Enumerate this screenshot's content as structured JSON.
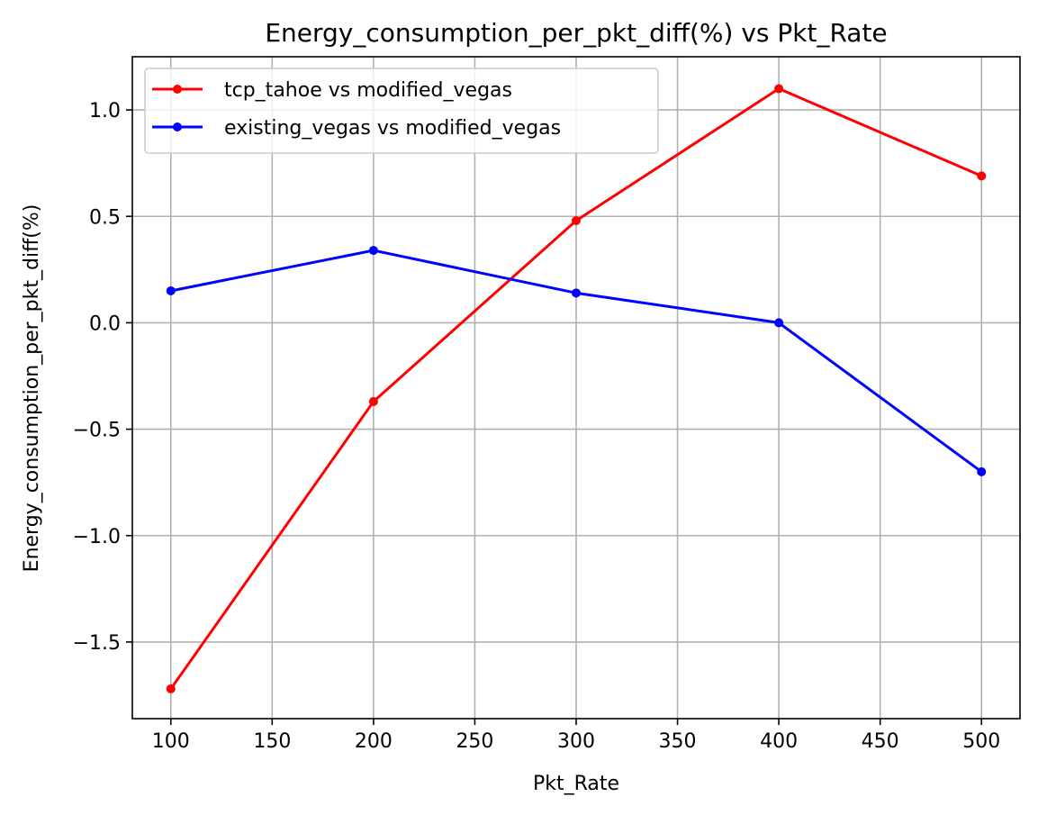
{
  "chart_data": {
    "type": "line",
    "title": "Energy_consumption_per_pkt_diff(%) vs Pkt_Rate",
    "xlabel": "Pkt_Rate",
    "ylabel": "Energy_consumption_per_pkt_diff(%)",
    "x": [
      100,
      200,
      300,
      400,
      500
    ],
    "xlim": [
      81,
      519
    ],
    "ylim": [
      -1.86,
      1.25
    ],
    "xticks": [
      100,
      150,
      200,
      250,
      300,
      350,
      400,
      450,
      500
    ],
    "yticks": [
      1.0,
      0.5,
      0.0,
      -0.5,
      -1.0,
      -1.5
    ],
    "xtick_labels": [
      "100",
      "150",
      "200",
      "250",
      "300",
      "350",
      "400",
      "450",
      "500"
    ],
    "ytick_labels": [
      "1.0",
      "0.5",
      "0.0",
      "−0.5",
      "−1.0",
      "−1.5"
    ],
    "grid": true,
    "legend_position": "top-left",
    "series": [
      {
        "name": "tcp_tahoe vs modified_vegas",
        "color": "#ff0000",
        "marker": "circle",
        "values": [
          -1.72,
          -0.37,
          0.48,
          1.1,
          0.69
        ]
      },
      {
        "name": "existing_vegas vs modified_vegas",
        "color": "#0000ff",
        "marker": "circle",
        "values": [
          0.15,
          0.34,
          0.14,
          0.0,
          -0.7
        ]
      }
    ]
  }
}
